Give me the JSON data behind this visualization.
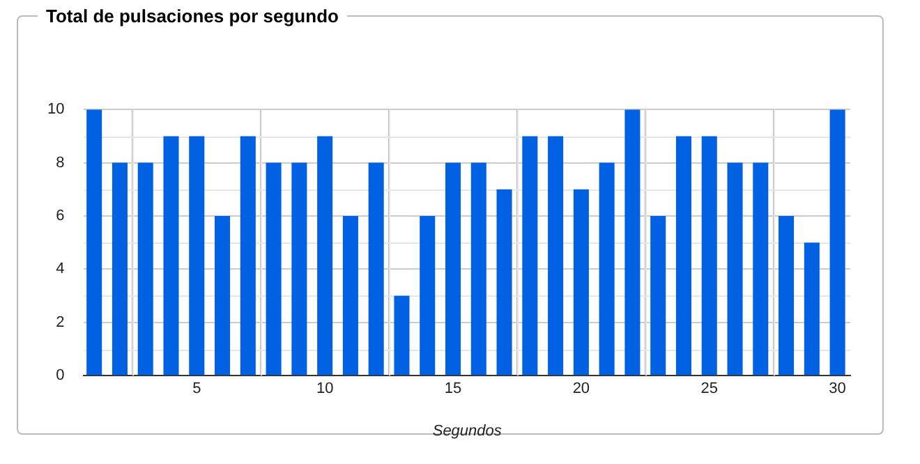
{
  "chart_data": {
    "type": "bar",
    "title": "Total de pulsaciones por segundo",
    "xlabel": "Segundos",
    "x": [
      1,
      2,
      3,
      4,
      5,
      6,
      7,
      8,
      9,
      10,
      11,
      12,
      13,
      14,
      15,
      16,
      17,
      18,
      19,
      20,
      21,
      22,
      23,
      24,
      25,
      26,
      27,
      28,
      29,
      30
    ],
    "values": [
      10,
      8,
      8,
      9,
      9,
      6,
      9,
      8,
      8,
      9,
      6,
      8,
      3,
      6,
      8,
      8,
      7,
      9,
      9,
      7,
      8,
      10,
      6,
      9,
      9,
      8,
      8,
      6,
      5,
      10
    ],
    "color": "#0062e3",
    "xlim": [
      0.6,
      30.5
    ],
    "xticks": [
      5,
      10,
      15,
      20,
      25,
      30
    ],
    "ylim": [
      0,
      10
    ],
    "yticks": [
      0,
      2,
      4,
      6,
      8,
      10
    ],
    "grid": true,
    "legend": false
  }
}
